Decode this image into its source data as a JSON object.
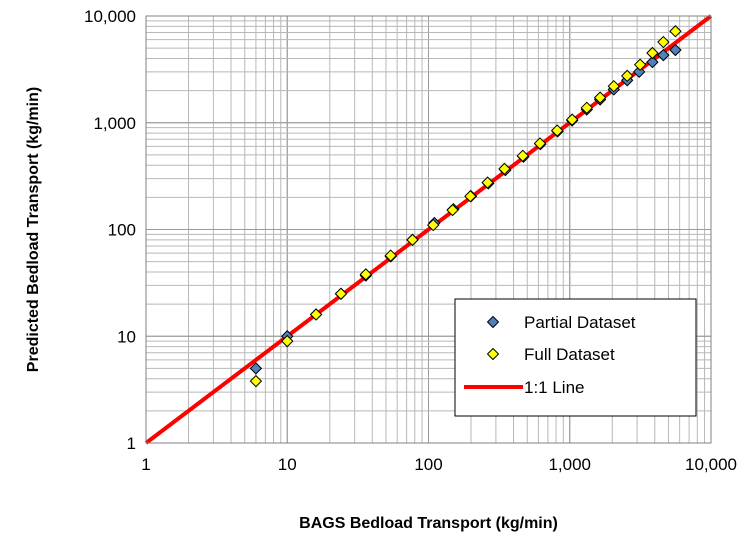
{
  "chart_data": {
    "type": "scatter",
    "xscale": "log",
    "yscale": "log",
    "xlim": [
      1,
      10000
    ],
    "ylim": [
      1,
      10000
    ],
    "xlabel": "BAGS Bedload Transport (kg/min)",
    "ylabel": "Predicted Bedload Transport (kg/min)",
    "x_tick_labels": [
      "1",
      "10",
      "100",
      "1,000",
      "10,000"
    ],
    "y_tick_labels": [
      "1",
      "10",
      "100",
      "1,000",
      "10,000"
    ],
    "grid": true,
    "legend_position": "bottom-right",
    "series": [
      {
        "name": "Partial Dataset",
        "marker": "diamond",
        "color": "#4F81BD",
        "x": [
          6,
          10,
          16,
          24,
          36,
          54,
          77,
          110,
          150,
          200,
          265,
          350,
          470,
          620,
          820,
          1040,
          1320,
          1640,
          2050,
          2550,
          3100,
          3850,
          4600,
          5600
        ],
        "y": [
          5,
          10,
          16,
          25,
          37,
          56,
          80,
          115,
          155,
          205,
          270,
          360,
          480,
          630,
          830,
          1050,
          1330,
          1650,
          2050,
          2500,
          3000,
          3700,
          4300,
          4800
        ]
      },
      {
        "name": "Full Dataset",
        "marker": "diamond",
        "color": "#FFFF00",
        "x": [
          6,
          10,
          16,
          24,
          36,
          54,
          77,
          108,
          148,
          198,
          262,
          345,
          465,
          615,
          815,
          1040,
          1320,
          1640,
          2050,
          2550,
          3150,
          3850,
          4600,
          5600
        ],
        "y": [
          3.8,
          9,
          16,
          25,
          38,
          57,
          80,
          110,
          152,
          205,
          275,
          370,
          490,
          640,
          845,
          1070,
          1380,
          1720,
          2200,
          2750,
          3500,
          4500,
          5700,
          7200
        ]
      },
      {
        "name": "1:1 Line",
        "type": "line",
        "color": "#FF0000",
        "x": [
          1,
          10000
        ],
        "y": [
          1,
          10000
        ]
      }
    ]
  }
}
